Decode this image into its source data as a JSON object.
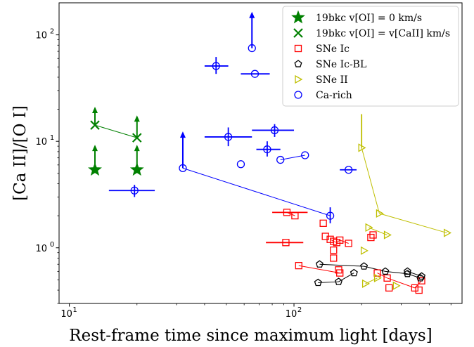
{
  "chart_data": {
    "type": "scatter",
    "xscale": "log",
    "yscale": "log",
    "xlim": [
      9,
      560
    ],
    "ylim": [
      0.3,
      200
    ],
    "xlabel": "Rest-frame time since maximum light [days]",
    "ylabel": "[Ca II]/[O I]",
    "grid": false,
    "legend_position": "top-right",
    "x_ticks": [
      {
        "value": 10,
        "label": "10",
        "sup": "1"
      },
      {
        "value": 100,
        "label": "10",
        "sup": "2"
      }
    ],
    "y_ticks": [
      {
        "value": 1,
        "label": "10",
        "sup": "0"
      },
      {
        "value": 10,
        "label": "10",
        "sup": "1"
      },
      {
        "value": 100,
        "label": "10",
        "sup": "2"
      }
    ],
    "legend": [
      {
        "name": "19bkc v[OI] = 0 km/s",
        "marker": "star",
        "color": "#008000"
      },
      {
        "name": "19bkc v[OI] = v[CaII] km/s",
        "marker": "x",
        "color": "#008000"
      },
      {
        "name": "SNe Ic",
        "marker": "square",
        "color": "#ff0000"
      },
      {
        "name": "SNe Ic-BL",
        "marker": "pentagon",
        "color": "#000000"
      },
      {
        "name": "SNe II",
        "marker": "triangle-right",
        "color": "#bfbf00"
      },
      {
        "name": "Ca-rich",
        "marker": "circle",
        "color": "#0000ff"
      }
    ],
    "series": [
      {
        "name": "19bkc v[OI] = 0 km/s",
        "marker": "star",
        "color": "#008000",
        "points": [
          {
            "x": 13,
            "y": 5.4,
            "lower_limit": true,
            "arrow_to": 9
          },
          {
            "x": 20,
            "y": 5.4,
            "lower_limit": true,
            "arrow_to": 9
          }
        ]
      },
      {
        "name": "19bkc v[OI] = v[CaII] km/s",
        "marker": "x",
        "color": "#008000",
        "points": [
          {
            "x": 13,
            "y": 14.2,
            "lower_limit": true,
            "arrow_to": 20.5
          },
          {
            "x": 20,
            "y": 10.8,
            "lower_limit": true,
            "arrow_to": 17
          }
        ],
        "lines": [
          [
            0,
            1
          ]
        ]
      },
      {
        "name": "SNe Ic",
        "marker": "square",
        "color": "#ff0000",
        "points": [
          {
            "x": 93,
            "y": 2.15,
            "xerr": [
              80,
              115
            ]
          },
          {
            "x": 101,
            "y": 2.0
          },
          {
            "x": 92,
            "y": 1.12,
            "xerr": [
              75,
              110
            ]
          },
          {
            "x": 135,
            "y": 1.7
          },
          {
            "x": 138,
            "y": 1.28
          },
          {
            "x": 145,
            "y": 1.2
          },
          {
            "x": 150,
            "y": 1.15
          },
          {
            "x": 155,
            "y": 1.12
          },
          {
            "x": 160,
            "y": 1.18
          },
          {
            "x": 175,
            "y": 1.1
          },
          {
            "x": 150,
            "y": 0.95
          },
          {
            "x": 150,
            "y": 0.8
          },
          {
            "x": 158,
            "y": 0.62
          },
          {
            "x": 160,
            "y": 0.58
          },
          {
            "x": 105,
            "y": 0.68
          },
          {
            "x": 225,
            "y": 1.32
          },
          {
            "x": 235,
            "y": 0.58
          },
          {
            "x": 260,
            "y": 0.52
          },
          {
            "x": 265,
            "y": 0.42
          },
          {
            "x": 345,
            "y": 0.42
          },
          {
            "x": 360,
            "y": 0.4
          },
          {
            "x": 370,
            "y": 0.49
          },
          {
            "x": 220,
            "y": 1.25
          }
        ],
        "lines": [
          [
            0,
            1
          ],
          [
            5,
            6
          ],
          [
            6,
            7
          ],
          [
            7,
            8
          ],
          [
            8,
            9
          ],
          [
            14,
            13
          ],
          [
            16,
            17
          ],
          [
            17,
            19
          ],
          [
            19,
            21
          ]
        ]
      },
      {
        "name": "SNe Ic-BL",
        "marker": "pentagon",
        "color": "#000000",
        "points": [
          {
            "x": 130,
            "y": 0.7
          },
          {
            "x": 205,
            "y": 0.67
          },
          {
            "x": 255,
            "y": 0.6
          },
          {
            "x": 320,
            "y": 0.57
          },
          {
            "x": 365,
            "y": 0.52
          },
          {
            "x": 128,
            "y": 0.47
          },
          {
            "x": 158,
            "y": 0.48
          },
          {
            "x": 185,
            "y": 0.58
          },
          {
            "x": 320,
            "y": 0.6
          },
          {
            "x": 370,
            "y": 0.54
          }
        ],
        "lines": [
          [
            0,
            1
          ],
          [
            1,
            2
          ],
          [
            2,
            3
          ],
          [
            3,
            4
          ],
          [
            5,
            6
          ],
          [
            6,
            7
          ],
          [
            8,
            9
          ]
        ]
      },
      {
        "name": "SNe II",
        "marker": "triangle-right",
        "color": "#bfbf00",
        "points": [
          {
            "x": 200,
            "y": 8.7,
            "yerr": [
              8.7,
              18
            ]
          },
          {
            "x": 240,
            "y": 2.1
          },
          {
            "x": 480,
            "y": 1.38
          },
          {
            "x": 215,
            "y": 1.55
          },
          {
            "x": 260,
            "y": 1.32
          },
          {
            "x": 205,
            "y": 0.94
          },
          {
            "x": 208,
            "y": 0.46
          },
          {
            "x": 235,
            "y": 0.52
          },
          {
            "x": 285,
            "y": 0.44
          }
        ],
        "lines": [
          [
            0,
            1
          ],
          [
            1,
            2
          ],
          [
            3,
            4
          ],
          [
            6,
            7
          ]
        ]
      },
      {
        "name": "Ca-rich",
        "marker": "circle",
        "color": "#0000ff",
        "points": [
          {
            "x": 65,
            "y": 75,
            "lower_limit": true,
            "arrow_to": 160
          },
          {
            "x": 45,
            "y": 51,
            "xerr": [
              40,
              51
            ],
            "yerr": [
              43,
              62
            ]
          },
          {
            "x": 67,
            "y": 43,
            "xerr": [
              58,
              78
            ]
          },
          {
            "x": 51,
            "y": 11,
            "xerr": [
              40,
              65
            ],
            "yerr": [
              9,
              13.5
            ]
          },
          {
            "x": 82,
            "y": 12.7,
            "xerr": [
              65,
              100
            ],
            "yerr": [
              11,
              14.5
            ]
          },
          {
            "x": 76,
            "y": 8.4,
            "xerr": [
              68,
              87
            ],
            "yerr": [
              7.2,
              10
            ]
          },
          {
            "x": 87,
            "y": 6.7
          },
          {
            "x": 112,
            "y": 7.4
          },
          {
            "x": 58,
            "y": 6.1
          },
          {
            "x": 32,
            "y": 5.6,
            "lower_limit": true,
            "arrow_to": 12
          },
          {
            "x": 175,
            "y": 5.4,
            "xerr": [
              160,
              190
            ]
          },
          {
            "x": 19.5,
            "y": 3.45,
            "xerr": [
              15,
              24
            ],
            "yerr": [
              3.0,
              3.9
            ]
          },
          {
            "x": 145,
            "y": 2.0,
            "yerr": [
              1.7,
              2.4
            ]
          }
        ],
        "lines": [
          [
            6,
            7
          ],
          [
            9,
            12
          ]
        ]
      }
    ]
  }
}
